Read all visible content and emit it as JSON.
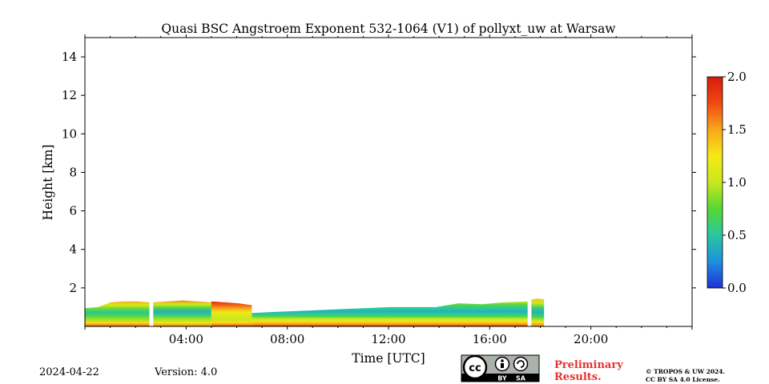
{
  "chart_data": {
    "type": "heatmap",
    "title": "Quasi BSC Angstroem Exponent 532-1064 (V1) of pollyxt_uw at Warsaw",
    "xlabel": "Time [UTC]",
    "ylabel": "Height [km]",
    "xlim_hours": [
      0,
      24
    ],
    "ylim_km": [
      0,
      15
    ],
    "x_ticks": [
      {
        "hour": 4,
        "label": "04:00"
      },
      {
        "hour": 8,
        "label": "08:00"
      },
      {
        "hour": 12,
        "label": "12:00"
      },
      {
        "hour": 16,
        "label": "16:00"
      },
      {
        "hour": 20,
        "label": "20:00"
      }
    ],
    "y_ticks": [
      {
        "km": 2,
        "label": "2"
      },
      {
        "km": 4,
        "label": "4"
      },
      {
        "km": 6,
        "label": "6"
      },
      {
        "km": 8,
        "label": "8"
      },
      {
        "km": 10,
        "label": "10"
      },
      {
        "km": 12,
        "label": "12"
      },
      {
        "km": 14,
        "label": "14"
      }
    ],
    "colorbar": {
      "min": 0.0,
      "max": 2.0,
      "ticks": [
        {
          "value": 0.0,
          "label": "0.0"
        },
        {
          "value": 0.5,
          "label": "0.5"
        },
        {
          "value": 1.0,
          "label": "1.0"
        },
        {
          "value": 1.5,
          "label": "1.5"
        },
        {
          "value": 2.0,
          "label": "2.0"
        }
      ],
      "colormap": [
        "#1f2fd6",
        "#1f8fe0",
        "#29c7a0",
        "#56d832",
        "#c8e81e",
        "#f7e816",
        "#f7a81a",
        "#ee4a12",
        "#d81a0e"
      ]
    },
    "layer": {
      "segments": [
        {
          "start": 0.0,
          "end": 2.55,
          "top_km": [
            0.95,
            1.0,
            1.25,
            1.3,
            1.3,
            1.25
          ],
          "values": [
            1.7,
            1.3,
            0.9,
            0.7,
            0.5,
            0.8,
            1.1,
            1.5
          ]
        },
        {
          "start": 2.7,
          "end": 5.0,
          "top_km": [
            1.25,
            1.3,
            1.35,
            1.3,
            1.25
          ],
          "values": [
            1.6,
            1.2,
            0.9,
            0.6,
            0.4,
            0.7,
            1.1,
            1.6
          ]
        },
        {
          "start": 5.0,
          "end": 6.6,
          "top_km": [
            1.3,
            1.25,
            1.2,
            1.1
          ],
          "values": [
            1.8,
            1.3,
            1.0,
            1.1,
            1.2,
            1.5,
            1.7,
            1.9
          ]
        },
        {
          "start": 6.6,
          "end": 17.5,
          "top_km": [
            0.7,
            0.75,
            0.8,
            0.85,
            0.9,
            0.95,
            1.0,
            1.0,
            1.0,
            1.2,
            1.15,
            1.25,
            1.3
          ],
          "values": [
            1.9,
            1.5,
            1.2,
            1.0,
            0.7,
            0.5,
            0.4,
            0.5,
            0.6,
            0.8,
            1.0
          ]
        },
        {
          "start": 17.65,
          "end": 18.15,
          "top_km": [
            1.4,
            1.45,
            1.4
          ],
          "values": [
            1.6,
            1.2,
            0.7,
            0.4,
            0.6,
            1.0,
            1.4
          ]
        }
      ]
    },
    "date": "2024-04-22",
    "version": "Version: 4.0",
    "badge_text": [
      "BY",
      "SA"
    ],
    "preliminary": [
      "Preliminary",
      "Results."
    ],
    "copyright": [
      "© TROPOS & UW 2024.",
      "CC BY SA 4.0 License."
    ]
  }
}
